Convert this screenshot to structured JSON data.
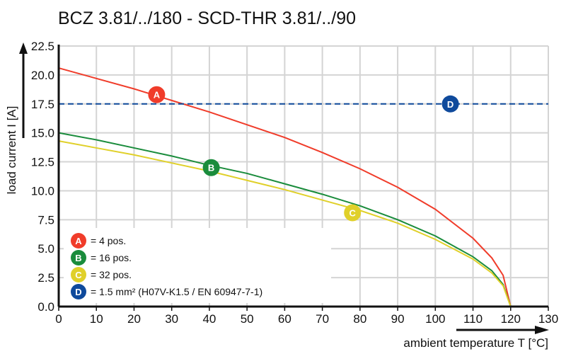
{
  "chart_data": {
    "type": "line",
    "title": "BCZ 3.81/../180 - SCD-THR 3.81/../90",
    "xlabel": "ambient temperature T [°C]",
    "ylabel": "load current I [A]",
    "xlim": [
      0,
      130
    ],
    "ylim": [
      0,
      22.5
    ],
    "x_ticks": [
      "0",
      "10",
      "20",
      "30",
      "40",
      "50",
      "60",
      "70",
      "80",
      "90",
      "100",
      "110",
      "120",
      "130"
    ],
    "y_ticks": [
      "0.0",
      "2.5",
      "5.0",
      "7.5",
      "10.0",
      "12.5",
      "15.0",
      "17.5",
      "20.0",
      "22.5"
    ],
    "grid": true,
    "legend_position": "bottom-left",
    "x": [
      0,
      10,
      20,
      30,
      40,
      50,
      60,
      70,
      80,
      90,
      100,
      110,
      115,
      118,
      120
    ],
    "series": [
      {
        "id": "A",
        "name": "= 4 pos.",
        "color": "#f03c2a",
        "marker_at": [
          26,
          18.3
        ],
        "values": [
          20.6,
          19.7,
          18.8,
          17.8,
          16.8,
          15.7,
          14.6,
          13.3,
          11.9,
          10.3,
          8.4,
          5.9,
          4.2,
          2.7,
          0
        ]
      },
      {
        "id": "B",
        "name": "= 16 pos.",
        "color": "#1a8c3c",
        "marker_at": [
          40.5,
          12.0
        ],
        "values": [
          15.0,
          14.4,
          13.7,
          13.0,
          12.2,
          11.5,
          10.6,
          9.7,
          8.7,
          7.5,
          6.1,
          4.3,
          3.1,
          1.9,
          0
        ]
      },
      {
        "id": "C",
        "name": "= 32 pos.",
        "color": "#e0d02a",
        "marker_at": [
          78,
          8.1
        ],
        "values": [
          14.3,
          13.7,
          13.1,
          12.4,
          11.7,
          10.9,
          10.1,
          9.2,
          8.3,
          7.2,
          5.8,
          4.1,
          2.9,
          1.8,
          0
        ]
      },
      {
        "id": "D",
        "name": "= 1.5 mm² (H07V-K1.5 / EN 60947-7-1)",
        "color": "#0f4a9c",
        "dashed": true,
        "marker_at": [
          104,
          17.5
        ],
        "values": [
          17.5,
          17.5,
          17.5,
          17.5,
          17.5,
          17.5,
          17.5,
          17.5,
          17.5,
          17.5,
          17.5,
          17.5,
          17.5,
          17.5,
          17.5
        ]
      }
    ]
  }
}
